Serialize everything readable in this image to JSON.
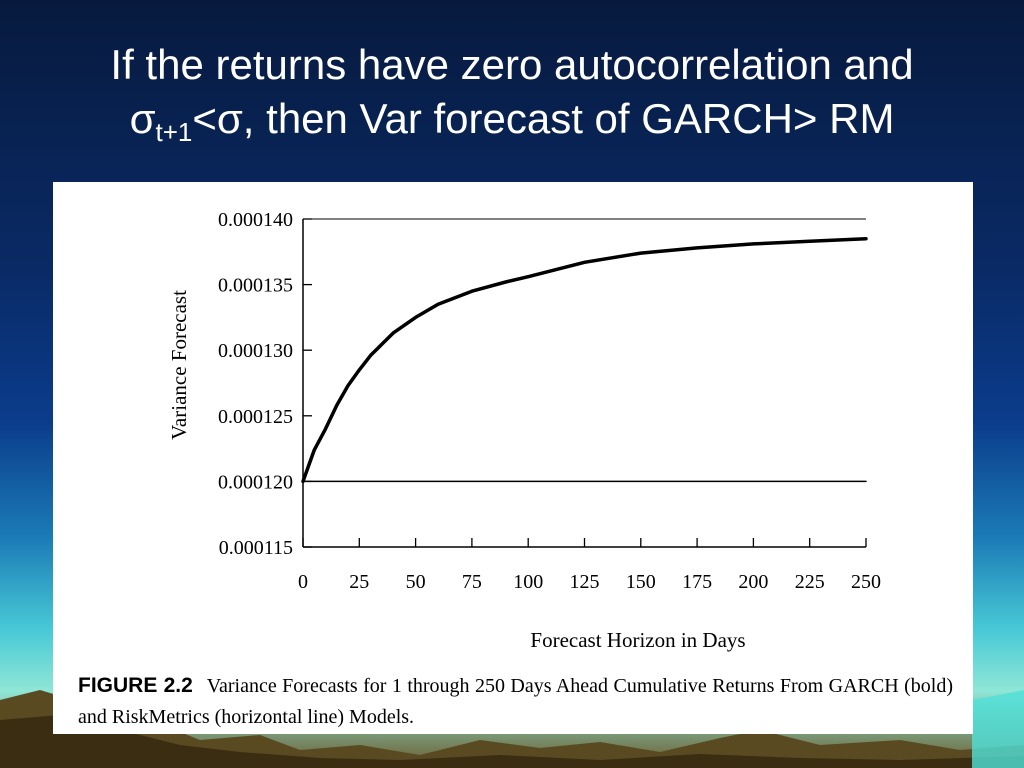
{
  "slide": {
    "title_line1": "If the returns have zero autocorrelation and",
    "title_sigma": "σ",
    "title_sub": "t+1",
    "title_rest": "<σ, then Var forecast of GARCH> RM"
  },
  "caption": {
    "label": "FIGURE 2.2",
    "text": "Variance Forecasts for 1 through 250 Days Ahead Cumulative Returns From GARCH (bold) and RiskMetrics (horizontal line) Models."
  },
  "chart_data": {
    "type": "line",
    "title": "",
    "xlabel": "Forecast Horizon in Days",
    "ylabel": "Variance Forecast",
    "xlim": [
      0,
      250
    ],
    "ylim": [
      0.000115,
      0.00014
    ],
    "x_ticks": [
      0,
      25,
      50,
      75,
      100,
      125,
      150,
      175,
      200,
      225,
      250
    ],
    "y_ticks": [
      "0.000115",
      "0.000120",
      "0.000125",
      "0.000130",
      "0.000135",
      "0.000140"
    ],
    "grid": false,
    "series": [
      {
        "style": "bold",
        "x": [
          0,
          5,
          10,
          15,
          20,
          25,
          30,
          40,
          50,
          60,
          75,
          90,
          100,
          125,
          150,
          175,
          200,
          225,
          250
        ],
        "y": [
          0.00012,
          0.0001224,
          0.000124,
          0.0001258,
          0.0001273,
          0.0001285,
          0.0001296,
          0.0001313,
          0.0001325,
          0.0001335,
          0.0001345,
          0.0001352,
          0.0001356,
          0.0001367,
          0.0001374,
          0.0001378,
          0.0001381,
          0.0001383,
          0.0001385
        ]
      },
      {
        "style": "thin",
        "x": [
          0,
          250
        ],
        "y": [
          0.00012,
          0.00012
        ]
      }
    ]
  }
}
